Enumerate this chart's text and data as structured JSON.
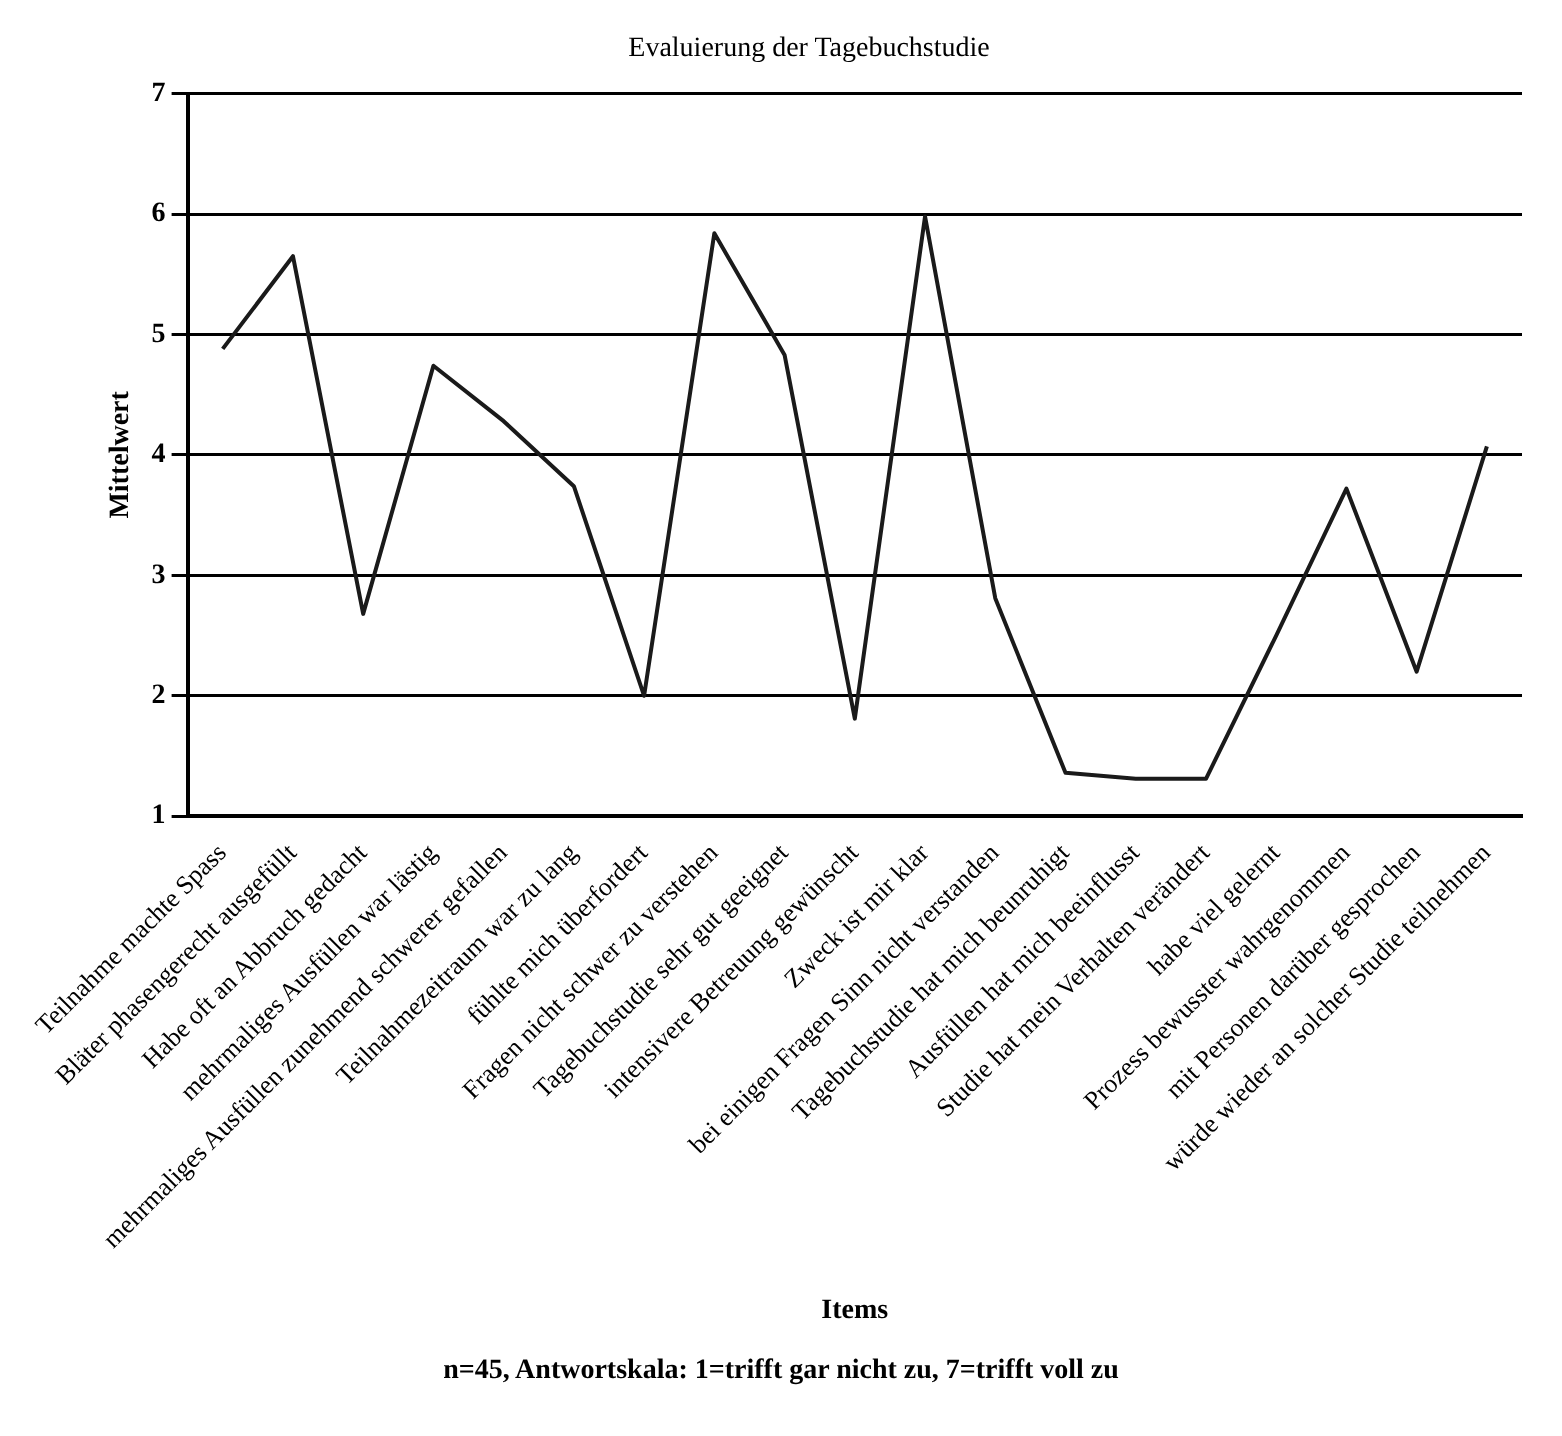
{
  "chart_data": {
    "type": "line",
    "title": "Evaluierung der Tagebuchstudie",
    "xlabel": "Items",
    "ylabel": "Mittelwert",
    "categories": [
      "Teilnahme machte Spass",
      "Bläter phasengerecht ausgefüllt",
      "Habe oft an Abbruch gedacht",
      "mehrmaliges Ausfüllen war lästig",
      "mehrmaliges Ausfüllen zunehmend schwerer gefallen",
      "Teilnahmezeitraum war zu lang",
      "fühlte mich überfordert",
      "Fragen nicht schwer zu verstehen",
      "Tagebuchstudie sehr gut geeignet",
      "intensivere Betreuung gewünscht",
      "Zweck ist mir klar",
      "bei einigen Fragen Sinn nicht verstanden",
      "Tagebuchstudie hat mich beunruhigt",
      "Ausfüllen hat mich beeinflusst",
      "Studie hat mein Verhalten verändert",
      "habe viel gelernt",
      "Prozess bewusster wahrgenommen",
      "mit Personen darüber gesprochen",
      "würde wieder an solcher Studie teilnehmen"
    ],
    "series": [
      {
        "color": "#1a1a1a",
        "values": [
          4.88,
          5.65,
          2.68,
          4.74,
          4.28,
          3.74,
          2.0,
          5.84,
          4.83,
          1.81,
          5.98,
          2.81,
          1.36,
          1.31,
          1.31,
          2.5,
          3.72,
          2.2,
          4.07
        ]
      }
    ],
    "ylim": [
      1,
      7
    ],
    "yticks": [
      1,
      2,
      3,
      4,
      5,
      6,
      7
    ],
    "grid": "y",
    "legend": false,
    "marker": "none",
    "line_style": "solid",
    "annotations": [
      "n=45, Antwortskala: 1=trifft gar nicht zu, 7=trifft voll zu"
    ]
  }
}
